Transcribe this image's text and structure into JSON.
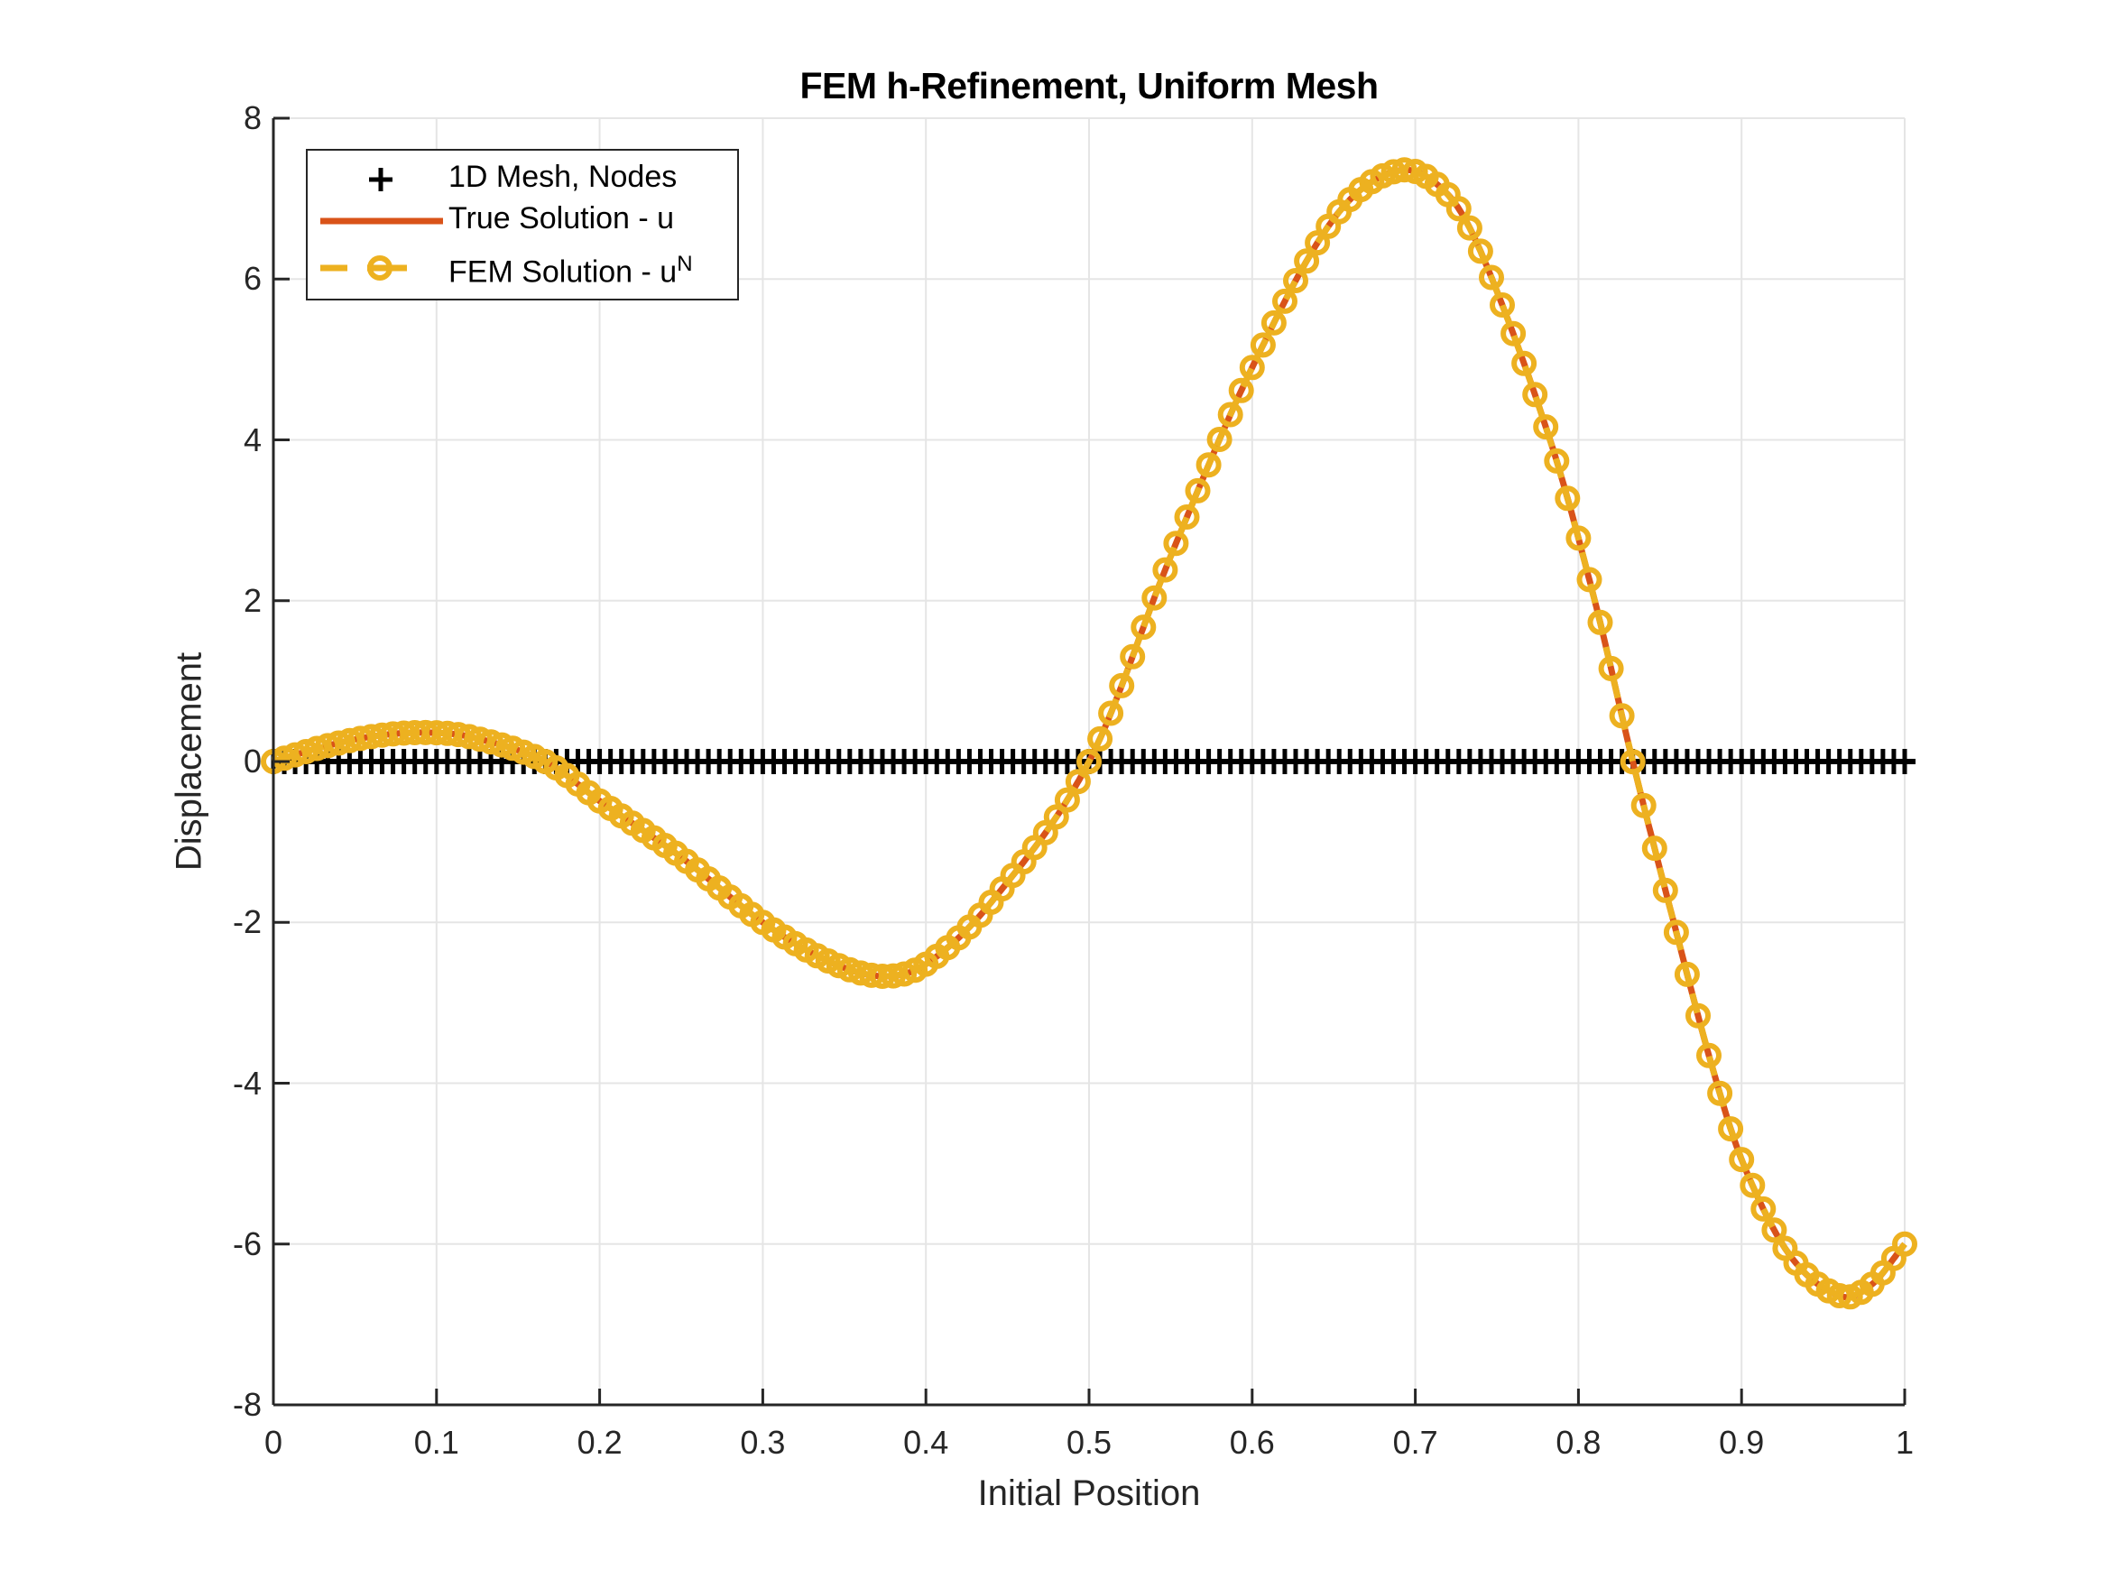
{
  "chart_data": {
    "type": "line",
    "title": "FEM h-Refinement, Uniform Mesh",
    "xlabel": "Initial Position",
    "ylabel": "Displacement",
    "xlim": [
      0,
      1
    ],
    "ylim": [
      -8,
      8
    ],
    "xticks": [
      "0",
      "0.1",
      "0.2",
      "0.3",
      "0.4",
      "0.5",
      "0.6",
      "0.7",
      "0.8",
      "0.9",
      "1"
    ],
    "yticks": [
      "-8",
      "-6",
      "-4",
      "-2",
      "0",
      "2",
      "4",
      "6",
      "8"
    ],
    "grid": true,
    "legend_position": "northwest",
    "mesh": {
      "num_elements": 150,
      "h": 0.006667,
      "node_y": 0
    },
    "series": [
      {
        "name": "1D Mesh, Nodes",
        "style": "markers +",
        "color": "#000000",
        "x_range": [
          0,
          1
        ],
        "y_constant": 0
      },
      {
        "name": "True Solution - u",
        "style": "solid line",
        "color": "#D95319",
        "x": [
          0,
          0.03,
          0.06,
          0.09,
          0.12,
          0.1667,
          0.2,
          0.25,
          0.3,
          0.34,
          0.373,
          0.4,
          0.44,
          0.5,
          0.55,
          0.6,
          0.65,
          0.69,
          0.72,
          0.742,
          0.7826,
          0.81,
          0.8333,
          0.856,
          0.8816,
          0.901,
          0.93,
          0.961,
          0.98,
          1.0
        ],
        "y": [
          0,
          0.18,
          0.31,
          0.36,
          0.31,
          0,
          -0.49,
          -1.19,
          -2.0,
          -2.48,
          -2.67,
          -2.52,
          -1.75,
          0,
          2.55,
          4.9,
          6.75,
          7.35,
          7.05,
          6.25,
          4.0,
          2.0,
          0,
          -1.81,
          -3.77,
          -5.0,
          -6.15,
          -6.65,
          -6.5,
          -6.0
        ]
      },
      {
        "name": "FEM Solution - u^N",
        "legend_label_base": "FEM Solution - u",
        "legend_label_sup": "N",
        "style": "dashed line with circle markers",
        "color": "#EDB120",
        "matches": "True Solution - u at nodes"
      }
    ]
  },
  "legend": {
    "items": [
      {
        "label": "1D Mesh, Nodes",
        "sup": ""
      },
      {
        "label": "True Solution - u",
        "sup": ""
      },
      {
        "label": "FEM Solution - u",
        "sup": "N"
      }
    ]
  },
  "colors": {
    "true_solution": "#D95319",
    "fem_solution": "#EDB120",
    "mesh": "#000000",
    "grid": "#E5E5E5",
    "axis": "#262626"
  }
}
